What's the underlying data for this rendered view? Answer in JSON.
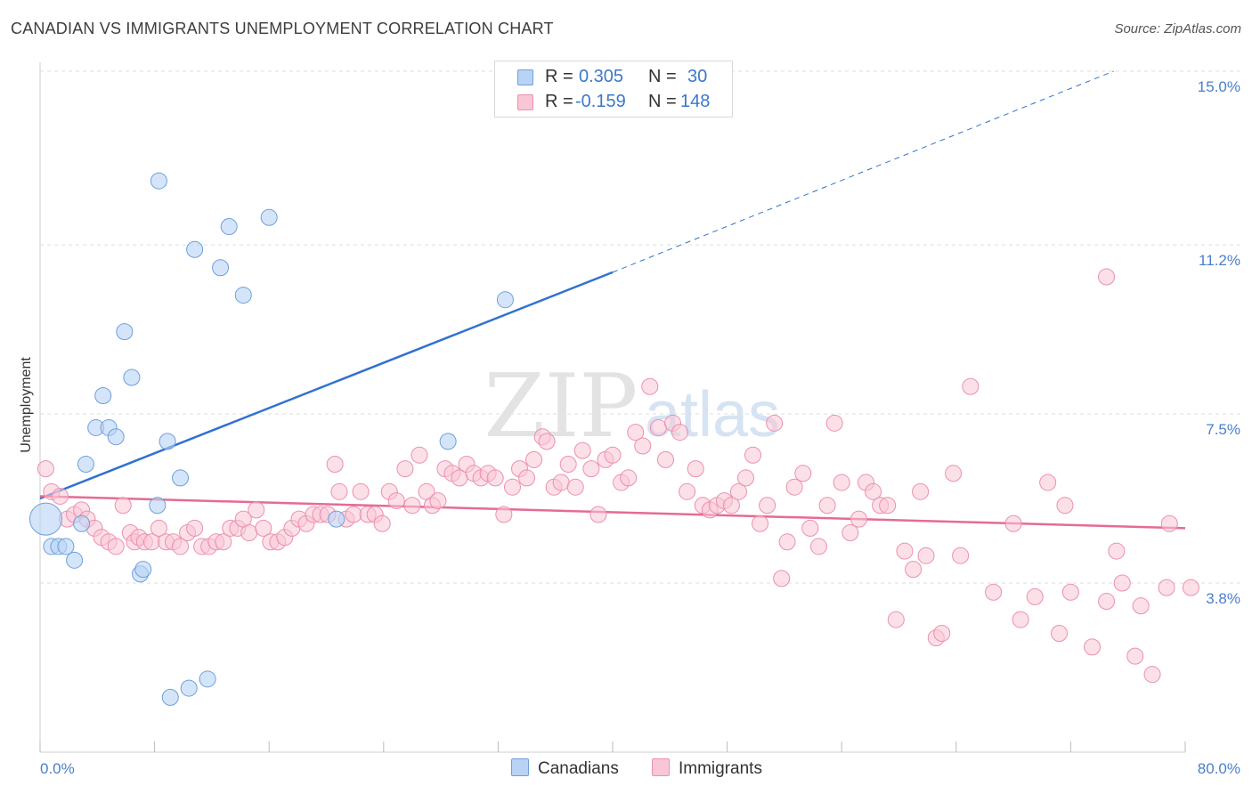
{
  "title": "CANADIAN VS IMMIGRANTS UNEMPLOYMENT CORRELATION CHART",
  "source": "Source: ZipAtlas.com",
  "watermark": {
    "zip": "ZIP",
    "atlas": "atlas"
  },
  "legend_top": {
    "rows": [
      {
        "r_label": "R =",
        "r_value": "0.305",
        "n_label": "N =",
        "n_value": "30"
      },
      {
        "r_label": "R =",
        "r_value": "-0.159",
        "n_label": "N =",
        "n_value": "148"
      }
    ]
  },
  "legend_bottom": {
    "canadians": "Canadians",
    "immigrants": "Immigrants"
  },
  "colors": {
    "canadians_fill": "#b9d3f5",
    "canadians_stroke": "#6d9fde",
    "canadians_line": "#2f72cf",
    "immigrants_fill": "#f9c6d6",
    "immigrants_stroke": "#ec8fae",
    "immigrants_line": "#e56b94",
    "grid": "#dddddd",
    "axis_text": "#4a7fc9"
  },
  "chart_data": {
    "type": "scatter",
    "title": "CANADIAN VS IMMIGRANTS UNEMPLOYMENT CORRELATION CHART",
    "xlabel": "",
    "ylabel": "Unemployment",
    "xlim": [
      0,
      80
    ],
    "ylim": [
      0,
      15.7
    ],
    "x_tick_labels": [
      "0.0%",
      "80.0%"
    ],
    "y_ticks": [
      3.8,
      7.5,
      11.2,
      15.0
    ],
    "y_tick_labels": [
      "3.8%",
      "7.5%",
      "11.2%",
      "15.0%"
    ],
    "series": [
      {
        "name": "Canadians",
        "R": 0.305,
        "N": 30,
        "points": [
          [
            0.4,
            5.2
          ],
          [
            0.8,
            4.6
          ],
          [
            1.3,
            4.6
          ],
          [
            1.8,
            4.6
          ],
          [
            2.4,
            4.3
          ],
          [
            3.2,
            6.4
          ],
          [
            2.9,
            5.1
          ],
          [
            3.9,
            7.2
          ],
          [
            4.4,
            7.9
          ],
          [
            4.8,
            7.2
          ],
          [
            5.3,
            7.0
          ],
          [
            5.9,
            9.3
          ],
          [
            6.4,
            8.3
          ],
          [
            7.0,
            4.0
          ],
          [
            7.2,
            4.1
          ],
          [
            8.2,
            5.5
          ],
          [
            8.3,
            12.6
          ],
          [
            8.9,
            6.9
          ],
          [
            9.1,
            1.3
          ],
          [
            9.8,
            6.1
          ],
          [
            10.4,
            1.5
          ],
          [
            10.8,
            11.1
          ],
          [
            11.7,
            1.7
          ],
          [
            12.6,
            10.7
          ],
          [
            13.2,
            11.6
          ],
          [
            14.2,
            10.1
          ],
          [
            16.0,
            11.8
          ],
          [
            20.7,
            5.2
          ],
          [
            28.5,
            6.9
          ],
          [
            32.5,
            10.0
          ]
        ],
        "trend": {
          "x0": 0,
          "y0": 5.65,
          "x1": 40,
          "y1": 10.6,
          "dashed_to_x": 75,
          "dashed_to_y": 15.0
        }
      },
      {
        "name": "Immigrants",
        "R": -0.159,
        "N": 148,
        "points": [
          [
            0.4,
            6.3
          ],
          [
            0.8,
            5.8
          ],
          [
            1.4,
            5.7
          ],
          [
            1.9,
            5.2
          ],
          [
            2.4,
            5.3
          ],
          [
            2.9,
            5.4
          ],
          [
            3.3,
            5.2
          ],
          [
            3.8,
            5.0
          ],
          [
            4.3,
            4.8
          ],
          [
            4.8,
            4.7
          ],
          [
            5.3,
            4.6
          ],
          [
            5.8,
            5.5
          ],
          [
            6.3,
            4.9
          ],
          [
            6.6,
            4.7
          ],
          [
            6.9,
            4.8
          ],
          [
            7.3,
            4.7
          ],
          [
            7.8,
            4.7
          ],
          [
            8.3,
            5.0
          ],
          [
            8.8,
            4.7
          ],
          [
            9.3,
            4.7
          ],
          [
            9.8,
            4.6
          ],
          [
            10.3,
            4.9
          ],
          [
            10.8,
            5.0
          ],
          [
            11.3,
            4.6
          ],
          [
            11.8,
            4.6
          ],
          [
            12.3,
            4.7
          ],
          [
            12.8,
            4.7
          ],
          [
            13.3,
            5.0
          ],
          [
            13.8,
            5.0
          ],
          [
            14.2,
            5.2
          ],
          [
            14.6,
            4.9
          ],
          [
            15.1,
            5.4
          ],
          [
            15.6,
            5.0
          ],
          [
            16.1,
            4.7
          ],
          [
            16.6,
            4.7
          ],
          [
            17.1,
            4.8
          ],
          [
            17.6,
            5.0
          ],
          [
            18.1,
            5.2
          ],
          [
            18.6,
            5.1
          ],
          [
            19.1,
            5.3
          ],
          [
            19.6,
            5.3
          ],
          [
            20.1,
            5.3
          ],
          [
            20.6,
            6.4
          ],
          [
            20.9,
            5.8
          ],
          [
            21.4,
            5.2
          ],
          [
            21.9,
            5.3
          ],
          [
            22.4,
            5.8
          ],
          [
            22.9,
            5.3
          ],
          [
            23.4,
            5.3
          ],
          [
            23.9,
            5.1
          ],
          [
            24.4,
            5.8
          ],
          [
            24.9,
            5.6
          ],
          [
            25.5,
            6.3
          ],
          [
            26.0,
            5.5
          ],
          [
            26.5,
            6.6
          ],
          [
            27.0,
            5.8
          ],
          [
            27.4,
            5.5
          ],
          [
            27.8,
            5.6
          ],
          [
            28.3,
            6.3
          ],
          [
            28.8,
            6.2
          ],
          [
            29.3,
            6.1
          ],
          [
            29.8,
            6.4
          ],
          [
            30.3,
            6.2
          ],
          [
            30.8,
            6.1
          ],
          [
            31.3,
            6.2
          ],
          [
            31.8,
            6.1
          ],
          [
            32.4,
            5.3
          ],
          [
            33.0,
            5.9
          ],
          [
            33.5,
            6.3
          ],
          [
            34.0,
            6.1
          ],
          [
            34.5,
            6.5
          ],
          [
            35.1,
            7.0
          ],
          [
            35.4,
            6.9
          ],
          [
            35.9,
            5.9
          ],
          [
            36.4,
            6.0
          ],
          [
            36.9,
            6.4
          ],
          [
            37.4,
            5.9
          ],
          [
            37.9,
            6.7
          ],
          [
            38.5,
            6.3
          ],
          [
            39.0,
            5.3
          ],
          [
            39.5,
            6.5
          ],
          [
            40.0,
            6.6
          ],
          [
            40.6,
            6.0
          ],
          [
            41.1,
            6.1
          ],
          [
            41.6,
            7.1
          ],
          [
            42.1,
            6.8
          ],
          [
            42.6,
            8.1
          ],
          [
            43.2,
            7.2
          ],
          [
            43.7,
            6.5
          ],
          [
            44.2,
            7.3
          ],
          [
            44.7,
            7.1
          ],
          [
            45.2,
            5.8
          ],
          [
            45.8,
            6.3
          ],
          [
            46.3,
            5.5
          ],
          [
            46.8,
            5.4
          ],
          [
            47.3,
            5.5
          ],
          [
            47.8,
            5.6
          ],
          [
            48.3,
            5.5
          ],
          [
            48.8,
            5.8
          ],
          [
            49.3,
            6.1
          ],
          [
            49.8,
            6.6
          ],
          [
            50.3,
            5.1
          ],
          [
            50.8,
            5.5
          ],
          [
            51.3,
            7.3
          ],
          [
            51.8,
            3.9
          ],
          [
            52.2,
            4.7
          ],
          [
            52.7,
            5.9
          ],
          [
            53.3,
            6.2
          ],
          [
            53.8,
            5.0
          ],
          [
            54.4,
            4.6
          ],
          [
            55.0,
            5.5
          ],
          [
            55.5,
            7.3
          ],
          [
            56.0,
            6.0
          ],
          [
            56.6,
            4.9
          ],
          [
            57.2,
            5.2
          ],
          [
            57.7,
            6.0
          ],
          [
            58.2,
            5.8
          ],
          [
            58.7,
            5.5
          ],
          [
            59.2,
            5.5
          ],
          [
            59.8,
            3.0
          ],
          [
            60.4,
            4.5
          ],
          [
            61.0,
            4.1
          ],
          [
            61.5,
            5.8
          ],
          [
            61.9,
            4.4
          ],
          [
            62.6,
            2.6
          ],
          [
            63.0,
            2.7
          ],
          [
            63.8,
            6.2
          ],
          [
            64.3,
            4.4
          ],
          [
            65.0,
            8.1
          ],
          [
            66.6,
            3.6
          ],
          [
            68.0,
            5.1
          ],
          [
            68.5,
            3.0
          ],
          [
            69.5,
            3.5
          ],
          [
            70.4,
            6.0
          ],
          [
            71.2,
            2.7
          ],
          [
            71.6,
            5.5
          ],
          [
            72.0,
            3.6
          ],
          [
            73.5,
            2.4
          ],
          [
            74.5,
            10.5
          ],
          [
            74.5,
            3.4
          ],
          [
            75.2,
            4.5
          ],
          [
            75.6,
            3.8
          ],
          [
            76.5,
            2.2
          ],
          [
            76.9,
            3.3
          ],
          [
            77.7,
            1.8
          ],
          [
            78.7,
            3.7
          ],
          [
            78.9,
            5.1
          ],
          [
            80.4,
            3.7
          ]
        ],
        "trend": {
          "x0": 0,
          "y0": 5.7,
          "x1": 80,
          "y1": 5.0
        }
      }
    ]
  }
}
